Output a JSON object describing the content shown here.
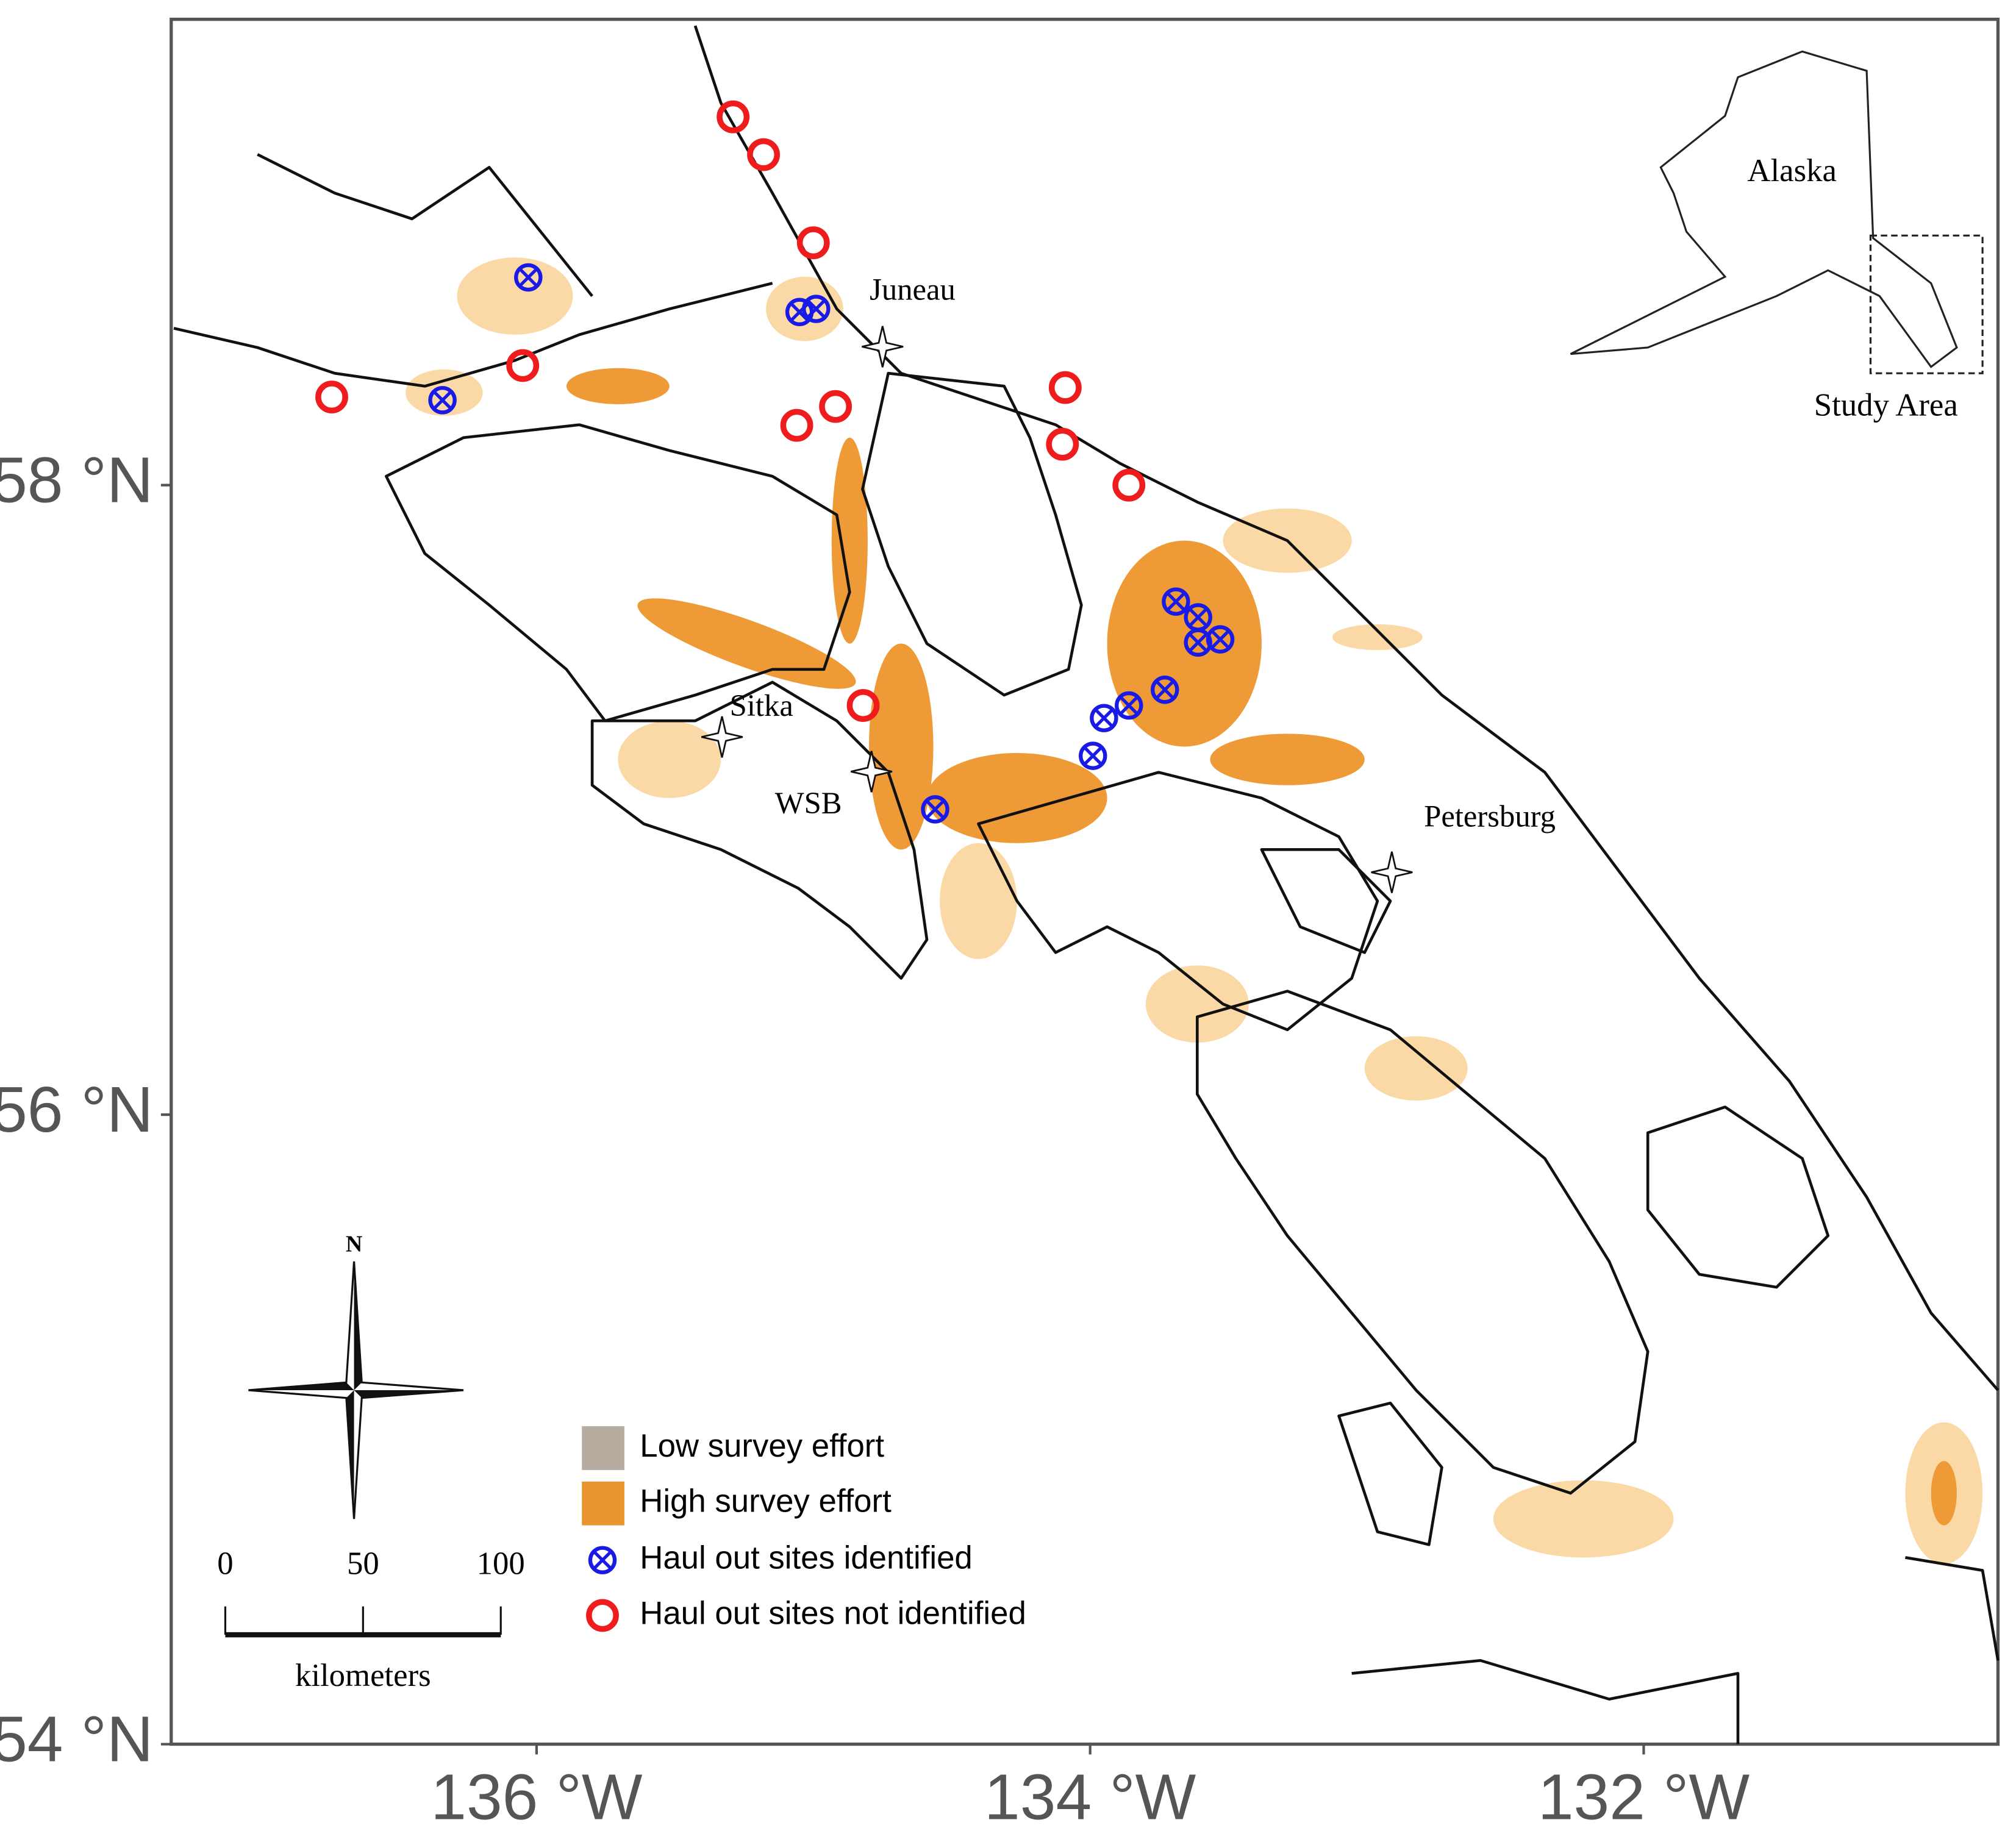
{
  "map": {
    "xlim": [
      -137.32,
      -130.72
    ],
    "ylim": [
      54,
      59.48
    ],
    "xticks": [
      {
        "value": -136,
        "label": "136 °W"
      },
      {
        "value": -134,
        "label": "134 °W"
      },
      {
        "value": -132,
        "label": "132 °W"
      }
    ],
    "yticks": [
      {
        "value": 54,
        "label": "54 °N"
      },
      {
        "value": 56,
        "label": "56 °N"
      },
      {
        "value": 58,
        "label": "58 °N"
      }
    ],
    "towns": [
      {
        "name": "Juneau",
        "lon": -134.75,
        "lat": 58.44
      },
      {
        "name": "Sitka",
        "lon": -135.33,
        "lat": 57.2
      },
      {
        "name": "WSB",
        "lon": -134.79,
        "lat": 57.09
      },
      {
        "name": "Petersburg",
        "lon": -132.91,
        "lat": 56.77
      }
    ],
    "legend": [
      {
        "label": "Low survey effort",
        "color": "#b5ab9f"
      },
      {
        "label": "High survey effort",
        "color": "#e8952e"
      }
    ],
    "series": [
      {
        "name": "Haul out sites identified",
        "color": "#1a1ae6",
        "lon": [
          -136.03,
          -136.34,
          -135.05,
          -134.99,
          -133.69,
          -133.61,
          -133.53,
          -133.61,
          -133.73,
          -133.86,
          -133.95,
          -133.99,
          -134.56
        ],
        "lat": [
          58.66,
          58.27,
          58.55,
          58.56,
          57.63,
          57.58,
          57.51,
          57.5,
          57.35,
          57.3,
          57.26,
          57.14,
          56.97
        ]
      },
      {
        "name": "Haul out sites not identified",
        "color": "#ee1c1c",
        "lon": [
          -135.29,
          -135.18,
          -135.0,
          -136.05,
          -136.74,
          -135.06,
          -134.92,
          -134.09,
          -134.1,
          -133.86,
          -134.82
        ],
        "lat": [
          59.17,
          59.05,
          58.77,
          58.38,
          58.28,
          58.19,
          58.25,
          58.31,
          58.13,
          58.0,
          57.3
        ]
      }
    ],
    "inset": {
      "region": "Alaska",
      "box": "Study Area"
    },
    "compass": "N",
    "scale_bar": {
      "ticks": [
        0,
        50,
        100
      ],
      "unit": "kilometers"
    }
  }
}
